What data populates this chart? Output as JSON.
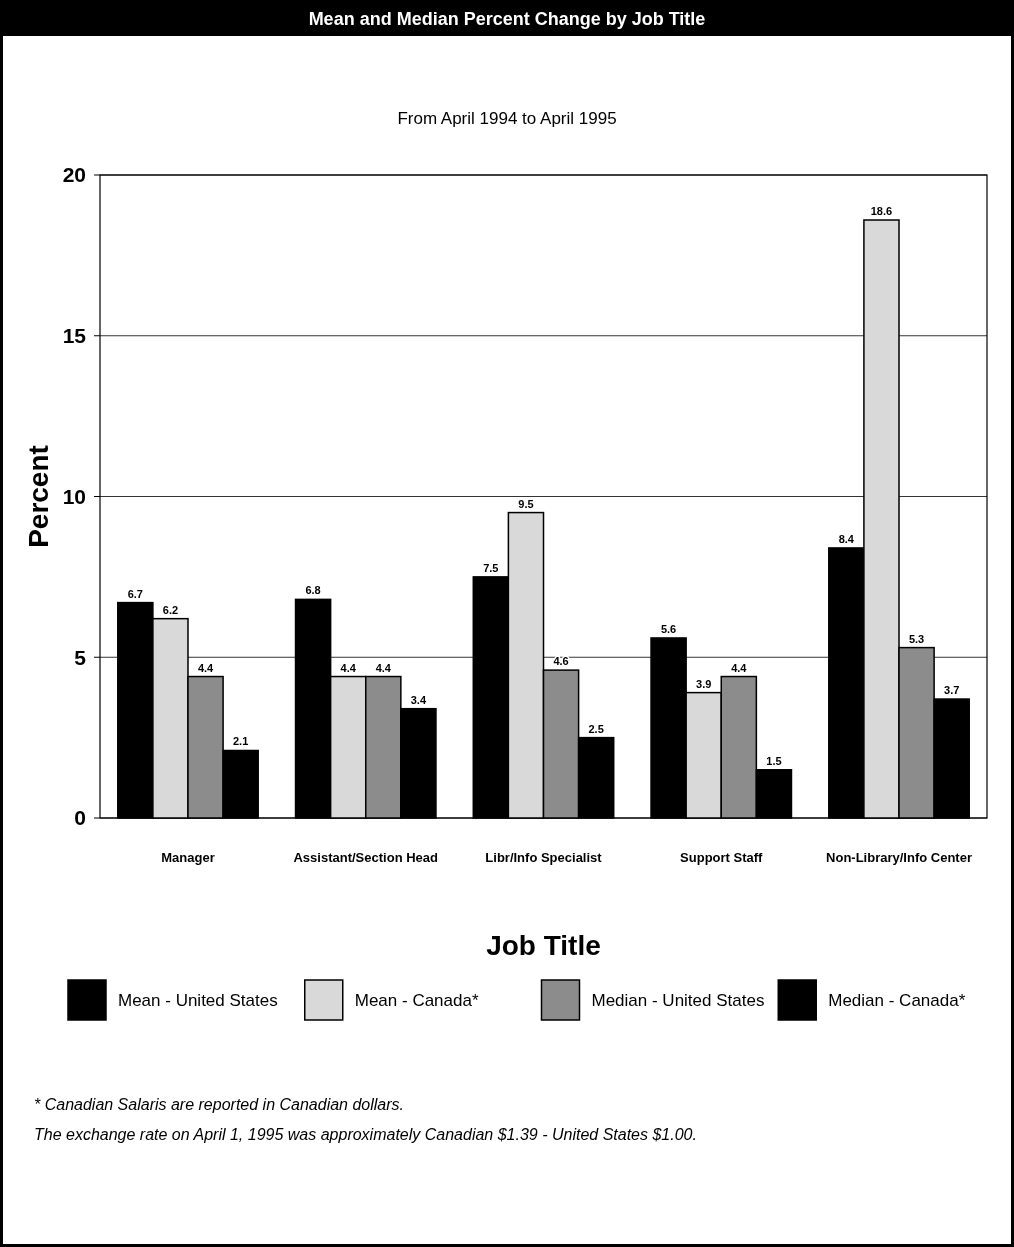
{
  "chart_data": {
    "type": "bar",
    "title": "Mean and Median Percent Change by Job Title",
    "subtitle": "From April 1994 to April 1995",
    "xlabel": "Job Title",
    "ylabel": "Percent",
    "categories": [
      "Manager",
      "Assistant/Section Head",
      "Libr/Info Specialist",
      "Support Staff",
      "Non-Library/Info Center"
    ],
    "series": [
      {
        "name": "Mean - United States",
        "color": "#000000",
        "values": [
          6.7,
          6.8,
          7.5,
          5.6,
          8.4
        ]
      },
      {
        "name": "Mean - Canada*",
        "color": "#d9d9d9",
        "values": [
          6.2,
          4.4,
          9.5,
          3.9,
          18.6
        ]
      },
      {
        "name": "Median - United States",
        "color": "#8c8c8c",
        "values": [
          4.4,
          4.4,
          4.6,
          4.4,
          5.3
        ]
      },
      {
        "name": "Median - Canada*",
        "color": "#000000",
        "values": [
          2.1,
          3.4,
          2.5,
          1.5,
          3.7
        ]
      }
    ],
    "ylim": [
      0,
      20
    ],
    "yticks": [
      0,
      5,
      10,
      15,
      20
    ],
    "grid": "y",
    "legend": "bottom",
    "data_labels": true,
    "annotations": [
      "* Canadian Salaris are reported in Canadian dollars.",
      "The exchange rate on April 1, 1995 was approximately Canadian $1.39 - United States $1.00."
    ]
  }
}
